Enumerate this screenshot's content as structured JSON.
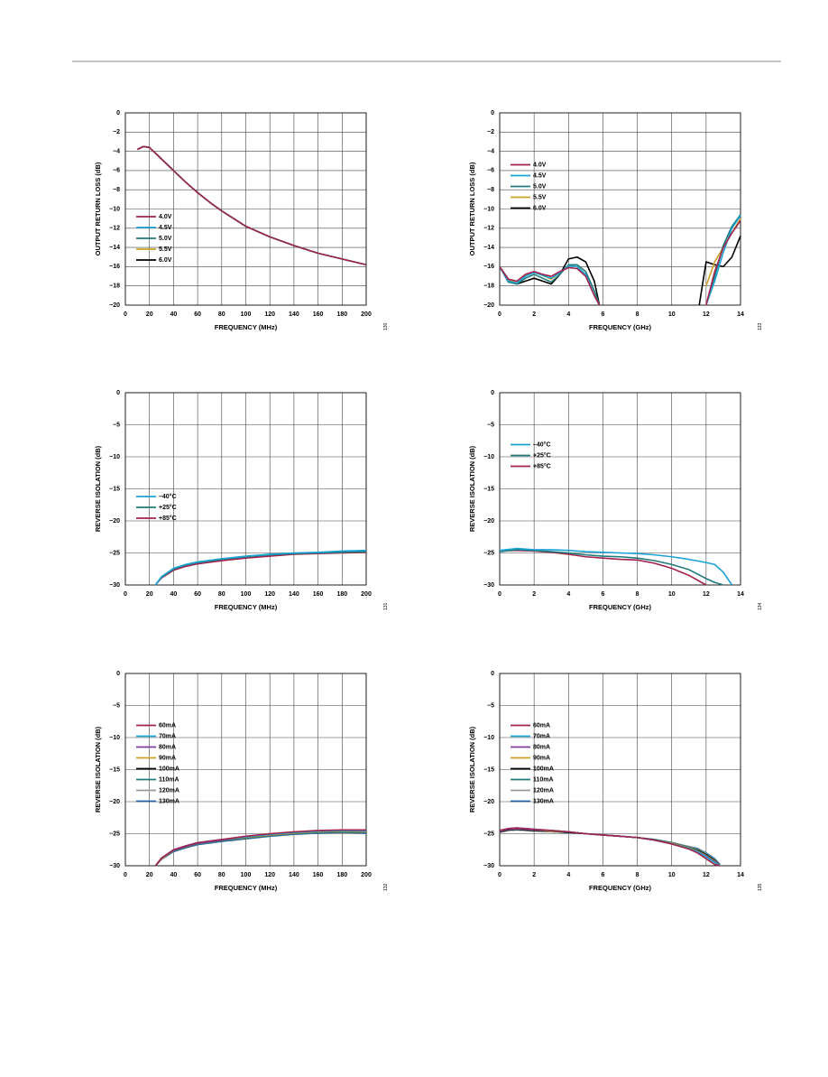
{
  "chart_data": [
    {
      "type": "line",
      "figure_id": "130",
      "xlabel": "FREQUENCY (MHz)",
      "ylabel": "OUTPUT RETURN LOSS (dB)",
      "xlim": [
        0,
        200
      ],
      "ylim": [
        -20,
        0
      ],
      "xticks": [
        0,
        20,
        40,
        60,
        80,
        100,
        120,
        140,
        160,
        180,
        200
      ],
      "yticks": [
        {
          "value": -20,
          "label": "−20"
        },
        {
          "value": -18,
          "label": "−18"
        },
        {
          "value": -16,
          "label": "−16"
        },
        {
          "value": -14,
          "label": "−14"
        },
        {
          "value": -12,
          "label": "−12"
        },
        {
          "value": -10,
          "label": "−10"
        },
        {
          "value": -8,
          "label": "−8"
        },
        {
          "value": -6,
          "label": "−6"
        },
        {
          "value": -4,
          "label": "−4"
        },
        {
          "value": -2,
          "label": "−2"
        },
        0
      ],
      "grid": true,
      "legend": "center left",
      "x": [
        10,
        15,
        20,
        30,
        40,
        50,
        60,
        70,
        80,
        90,
        100,
        120,
        140,
        160,
        180,
        200
      ],
      "series": [
        {
          "name": "4.0V",
          "color": "#a3214d",
          "values": [
            -3.8,
            -3.5,
            -3.6,
            -4.8,
            -6.0,
            -7.2,
            -8.3,
            -9.3,
            -10.2,
            -11.0,
            -11.8,
            -12.9,
            -13.8,
            -14.6,
            -15.2,
            -15.8
          ]
        },
        {
          "name": "4.5V",
          "color": "#1ba3d6",
          "values": [
            -3.8,
            -3.5,
            -3.6,
            -4.8,
            -6.0,
            -7.2,
            -8.3,
            -9.3,
            -10.2,
            -11.0,
            -11.8,
            -12.9,
            -13.8,
            -14.6,
            -15.2,
            -15.8
          ]
        },
        {
          "name": "5.0V",
          "color": "#1f7a7a",
          "values": [
            -3.8,
            -3.5,
            -3.6,
            -4.8,
            -6.0,
            -7.2,
            -8.3,
            -9.3,
            -10.2,
            -11.0,
            -11.8,
            -12.9,
            -13.8,
            -14.6,
            -15.2,
            -15.8
          ]
        },
        {
          "name": "5.5V",
          "color": "#c9a227",
          "values": [
            -3.8,
            -3.5,
            -3.6,
            -4.8,
            -6.0,
            -7.2,
            -8.3,
            -9.3,
            -10.2,
            -11.0,
            -11.8,
            -12.9,
            -13.8,
            -14.6,
            -15.2,
            -15.8
          ]
        },
        {
          "name": "6.0V",
          "color": "#000000",
          "values": [
            -3.8,
            -3.5,
            -3.6,
            -4.8,
            -6.0,
            -7.2,
            -8.3,
            -9.3,
            -10.2,
            -11.0,
            -11.8,
            -12.9,
            -13.8,
            -14.6,
            -15.2,
            -15.8
          ]
        }
      ]
    },
    {
      "type": "line",
      "figure_id": "133",
      "xlabel": "FREQUENCY (GHz)",
      "ylabel": "OUTPUT RETURN LOSS (dB)",
      "xlim": [
        0,
        14
      ],
      "ylim": [
        -20,
        0
      ],
      "xticks": [
        0,
        2,
        4,
        6,
        8,
        10,
        12,
        14
      ],
      "yticks": [
        {
          "value": -20,
          "label": "−20"
        },
        {
          "value": -18,
          "label": "−18"
        },
        {
          "value": -16,
          "label": "−16"
        },
        {
          "value": -14,
          "label": "−14"
        },
        {
          "value": -12,
          "label": "−12"
        },
        {
          "value": -10,
          "label": "−10"
        },
        {
          "value": -8,
          "label": "−8"
        },
        {
          "value": -6,
          "label": "−6"
        },
        {
          "value": -4,
          "label": "−4"
        },
        {
          "value": -2,
          "label": "−2"
        },
        0
      ],
      "grid": true,
      "legend": "upper left",
      "x": [
        0,
        0.5,
        1,
        1.5,
        2,
        2.5,
        3,
        3.5,
        4,
        4.5,
        5,
        5.5,
        5.8,
        8,
        11.6,
        12,
        12.5,
        13,
        13.5,
        14
      ],
      "series": [
        {
          "name": "4.0V",
          "color": "#a3214d",
          "values": [
            -16,
            -17.3,
            -17.5,
            -16.8,
            -16.5,
            -16.8,
            -17,
            -16.5,
            -16.1,
            -16.2,
            -17,
            -19,
            -20,
            null,
            null,
            -20,
            -16.5,
            -14,
            -12.5,
            -11.2
          ]
        },
        {
          "name": "4.5V",
          "color": "#1ba3d6",
          "values": [
            -16,
            -17.5,
            -17.7,
            -17,
            -16.6,
            -16.9,
            -17.2,
            -16.6,
            -15.9,
            -16,
            -16.8,
            -19,
            -20,
            null,
            null,
            -20,
            -17.5,
            -14.5,
            -12,
            -10.7
          ]
        },
        {
          "name": "5.0V",
          "color": "#1f7a7a",
          "values": [
            -16,
            -17.6,
            -17.8,
            -17.2,
            -16.8,
            -17.2,
            -17.6,
            -16.8,
            -15.8,
            -15.8,
            -16.5,
            -18.5,
            -20,
            null,
            null,
            -20,
            -17,
            -13.8,
            -11.8,
            -10.6
          ]
        },
        {
          "name": "5.5V",
          "color": "#c9a227",
          "values": [
            -16,
            -17.4,
            -17.6,
            -16.9,
            -16.6,
            -16.9,
            -17.3,
            -16.6,
            -15.9,
            -16,
            -16.8,
            -19,
            -20,
            null,
            null,
            -18,
            -15.5,
            -14,
            -12.5,
            -11
          ]
        },
        {
          "name": "6.0V",
          "color": "#000000",
          "values": [
            -16,
            -17.3,
            -17.8,
            -17.5,
            -17.2,
            -17.5,
            -17.8,
            -16.8,
            -15.2,
            -15,
            -15.5,
            -17.5,
            -20,
            null,
            -20,
            -15.5,
            -15.8,
            -16,
            -15,
            -12.8
          ]
        }
      ]
    },
    {
      "type": "line",
      "figure_id": "131",
      "xlabel": "FREQUENCY (MHz)",
      "ylabel": "REVERSE ISOLATION (dB)",
      "xlim": [
        0,
        200
      ],
      "ylim": [
        -30,
        0
      ],
      "xticks": [
        0,
        20,
        40,
        60,
        80,
        100,
        120,
        140,
        160,
        180,
        200
      ],
      "yticks": [
        {
          "value": -30,
          "label": "−30"
        },
        {
          "value": -25,
          "label": "−25"
        },
        {
          "value": -20,
          "label": "−20"
        },
        {
          "value": -15,
          "label": "−15"
        },
        {
          "value": -10,
          "label": "−10"
        },
        {
          "value": -5,
          "label": "−5"
        },
        0
      ],
      "grid": true,
      "legend": "center left",
      "x": [
        25,
        30,
        40,
        50,
        60,
        80,
        100,
        120,
        140,
        160,
        180,
        200
      ],
      "series": [
        {
          "name": "–40°C",
          "color": "#1ba3d6",
          "values": [
            -30,
            -28.7,
            -27.4,
            -26.8,
            -26.4,
            -25.9,
            -25.5,
            -25.2,
            -25,
            -24.9,
            -24.7,
            -24.6
          ]
        },
        {
          "name": "+25°C",
          "color": "#1f7a7a",
          "values": [
            -30,
            -28.8,
            -27.5,
            -26.9,
            -26.5,
            -26,
            -25.6,
            -25.3,
            -25.1,
            -25,
            -24.9,
            -24.8
          ]
        },
        {
          "name": "+85°C",
          "color": "#a3214d",
          "values": [
            -30,
            -28.9,
            -27.7,
            -27.1,
            -26.7,
            -26.2,
            -25.8,
            -25.5,
            -25.2,
            -25.1,
            -25,
            -24.9
          ]
        }
      ]
    },
    {
      "type": "line",
      "figure_id": "134",
      "xlabel": "FREQUENCY (GHz)",
      "ylabel": "REVERSE ISOLATION (dB)",
      "xlim": [
        0,
        14
      ],
      "ylim": [
        -30,
        0
      ],
      "xticks": [
        0,
        2,
        4,
        6,
        8,
        10,
        12,
        14
      ],
      "yticks": [
        {
          "value": -30,
          "label": "−30"
        },
        {
          "value": -25,
          "label": "−25"
        },
        {
          "value": -20,
          "label": "−20"
        },
        {
          "value": -15,
          "label": "−15"
        },
        {
          "value": -10,
          "label": "−10"
        },
        {
          "value": -5,
          "label": "−5"
        },
        0
      ],
      "grid": true,
      "legend": "upper left",
      "x": [
        0,
        1,
        2,
        3,
        4,
        5,
        6,
        7,
        8,
        9,
        10,
        11,
        12,
        12.5,
        13,
        13.5
      ],
      "series": [
        {
          "name": "–40°C",
          "color": "#1ba3d6",
          "values": [
            -24.6,
            -24.3,
            -24.5,
            -24.5,
            -24.6,
            -24.8,
            -24.9,
            -25,
            -25.1,
            -25.3,
            -25.6,
            -26,
            -26.5,
            -26.8,
            -28,
            -30
          ]
        },
        {
          "name": "+25°C",
          "color": "#1f7a7a",
          "values": [
            -24.8,
            -24.5,
            -24.6,
            -24.8,
            -25,
            -25.3,
            -25.5,
            -25.6,
            -25.8,
            -26.2,
            -26.8,
            -27.6,
            -29,
            -29.6,
            -30,
            null
          ]
        },
        {
          "name": "+85°C",
          "color": "#a3214d",
          "values": [
            -24.7,
            -24.6,
            -24.7,
            -24.9,
            -25.2,
            -25.6,
            -25.8,
            -26,
            -26.1,
            -26.6,
            -27.4,
            -28.5,
            -30,
            null,
            null,
            null
          ]
        }
      ]
    },
    {
      "type": "line",
      "figure_id": "132",
      "xlabel": "FREQUENCY (MHz)",
      "ylabel": "REVERSE ISOLATION (dB)",
      "xlim": [
        0,
        200
      ],
      "ylim": [
        -30,
        0
      ],
      "xticks": [
        0,
        20,
        40,
        60,
        80,
        100,
        120,
        140,
        160,
        180,
        200
      ],
      "yticks": [
        {
          "value": -30,
          "label": "−30"
        },
        {
          "value": -25,
          "label": "−25"
        },
        {
          "value": -20,
          "label": "−20"
        },
        {
          "value": -15,
          "label": "−15"
        },
        {
          "value": -10,
          "label": "−10"
        },
        {
          "value": -5,
          "label": "−5"
        },
        0
      ],
      "grid": true,
      "legend": "upper left",
      "x": [
        25,
        30,
        40,
        50,
        60,
        80,
        100,
        120,
        140,
        160,
        180,
        200
      ],
      "series": [
        {
          "name": "60mA",
          "color": "#a3214d",
          "values": [
            -30,
            -28.8,
            -27.5,
            -26.9,
            -26.4,
            -25.9,
            -25.4,
            -25,
            -24.7,
            -24.5,
            -24.4,
            -24.4
          ]
        },
        {
          "name": "70mA",
          "color": "#1ba3d6",
          "values": [
            -30,
            -28.8,
            -27.5,
            -26.9,
            -26.4,
            -25.9,
            -25.5,
            -25.1,
            -24.8,
            -24.6,
            -24.5,
            -24.5
          ]
        },
        {
          "name": "80mA",
          "color": "#7b3f9e",
          "values": [
            -30,
            -28.8,
            -27.6,
            -27,
            -26.5,
            -26,
            -25.5,
            -25.1,
            -24.8,
            -24.6,
            -24.5,
            -24.6
          ]
        },
        {
          "name": "90mA",
          "color": "#c9a227",
          "values": [
            -30,
            -28.9,
            -27.6,
            -27,
            -26.5,
            -26,
            -25.6,
            -25.2,
            -24.9,
            -24.7,
            -24.6,
            -24.7
          ]
        },
        {
          "name": "100mA",
          "color": "#000000",
          "values": [
            -30,
            -28.9,
            -27.6,
            -27,
            -26.5,
            -26,
            -25.6,
            -25.2,
            -24.9,
            -24.7,
            -24.6,
            -24.7
          ]
        },
        {
          "name": "110mA",
          "color": "#1f7a7a",
          "values": [
            -30,
            -28.9,
            -27.7,
            -27.1,
            -26.6,
            -26.1,
            -25.7,
            -25.3,
            -25,
            -24.8,
            -24.7,
            -24.8
          ]
        },
        {
          "name": "120mA",
          "color": "#9a9a9a",
          "values": [
            -30,
            -29,
            -27.7,
            -27.1,
            -26.6,
            -26.1,
            -25.7,
            -25.3,
            -25,
            -24.8,
            -24.7,
            -24.8
          ]
        },
        {
          "name": "130mA",
          "color": "#1f5fa0",
          "values": [
            -30,
            -29,
            -27.8,
            -27.2,
            -26.7,
            -26.2,
            -25.8,
            -25.4,
            -25.1,
            -24.9,
            -24.8,
            -24.9
          ]
        }
      ]
    },
    {
      "type": "line",
      "figure_id": "135",
      "xlabel": "FREQUENCY (GHz)",
      "ylabel": "REVERSE ISOLATION (dB)",
      "xlim": [
        0,
        14
      ],
      "ylim": [
        -30,
        0
      ],
      "xticks": [
        0,
        2,
        4,
        6,
        8,
        10,
        12,
        14
      ],
      "yticks": [
        {
          "value": -30,
          "label": "−30"
        },
        {
          "value": -25,
          "label": "−25"
        },
        {
          "value": -20,
          "label": "−20"
        },
        {
          "value": -15,
          "label": "−15"
        },
        {
          "value": -10,
          "label": "−10"
        },
        {
          "value": -5,
          "label": "−5"
        },
        0
      ],
      "grid": true,
      "legend": "upper left",
      "x": [
        0,
        0.5,
        1,
        2,
        3,
        4,
        5,
        6,
        7,
        8,
        9,
        10,
        11,
        11.5,
        12,
        12.5,
        12.8
      ],
      "series": [
        {
          "name": "60mA",
          "color": "#a3214d",
          "values": [
            -24.5,
            -24.2,
            -24.1,
            -24.3,
            -24.5,
            -24.7,
            -25,
            -25.2,
            -25.4,
            -25.6,
            -26,
            -26.6,
            -27.4,
            -28,
            -28.9,
            -29.8,
            -30
          ]
        },
        {
          "name": "70mA",
          "color": "#1ba3d6",
          "values": [
            -24.5,
            -24.2,
            -24.1,
            -24.3,
            -24.5,
            -24.7,
            -25,
            -25.2,
            -25.4,
            -25.6,
            -26,
            -26.6,
            -27.3,
            -27.8,
            -28.6,
            -29.5,
            -30
          ]
        },
        {
          "name": "80mA",
          "color": "#7b3f9e",
          "values": [
            -24.6,
            -24.3,
            -24.2,
            -24.4,
            -24.5,
            -24.7,
            -25,
            -25.2,
            -25.4,
            -25.6,
            -26,
            -26.6,
            -27.3,
            -27.8,
            -28.5,
            -29.4,
            -30
          ]
        },
        {
          "name": "90mA",
          "color": "#c9a227",
          "values": [
            -24.6,
            -24.3,
            -24.2,
            -24.4,
            -24.6,
            -24.7,
            -25,
            -25.2,
            -25.4,
            -25.6,
            -26,
            -26.5,
            -27.2,
            -27.7,
            -28.4,
            -29.3,
            -30
          ]
        },
        {
          "name": "100mA",
          "color": "#000000",
          "values": [
            -24.7,
            -24.4,
            -24.3,
            -24.5,
            -24.6,
            -24.8,
            -25,
            -25.2,
            -25.4,
            -25.6,
            -26,
            -26.5,
            -27.2,
            -27.6,
            -28.3,
            -29.2,
            -30
          ]
        },
        {
          "name": "110mA",
          "color": "#1f7a7a",
          "values": [
            -24.7,
            -24.4,
            -24.3,
            -24.5,
            -24.6,
            -24.8,
            -25,
            -25.2,
            -25.4,
            -25.6,
            -25.9,
            -26.4,
            -27.1,
            -27.5,
            -28.2,
            -29.1,
            -30
          ]
        },
        {
          "name": "120mA",
          "color": "#9a9a9a",
          "values": [
            -24.8,
            -24.5,
            -24.4,
            -24.6,
            -24.7,
            -24.8,
            -25,
            -25.2,
            -25.4,
            -25.6,
            -25.9,
            -26.4,
            -27,
            -27.4,
            -28.1,
            -29,
            -30
          ]
        },
        {
          "name": "130mA",
          "color": "#1f5fa0",
          "values": [
            -24.8,
            -24.5,
            -24.4,
            -24.6,
            -24.7,
            -24.8,
            -25,
            -25.2,
            -25.4,
            -25.6,
            -25.9,
            -26.4,
            -27,
            -27.3,
            -28,
            -28.9,
            -29.8
          ]
        }
      ]
    }
  ]
}
